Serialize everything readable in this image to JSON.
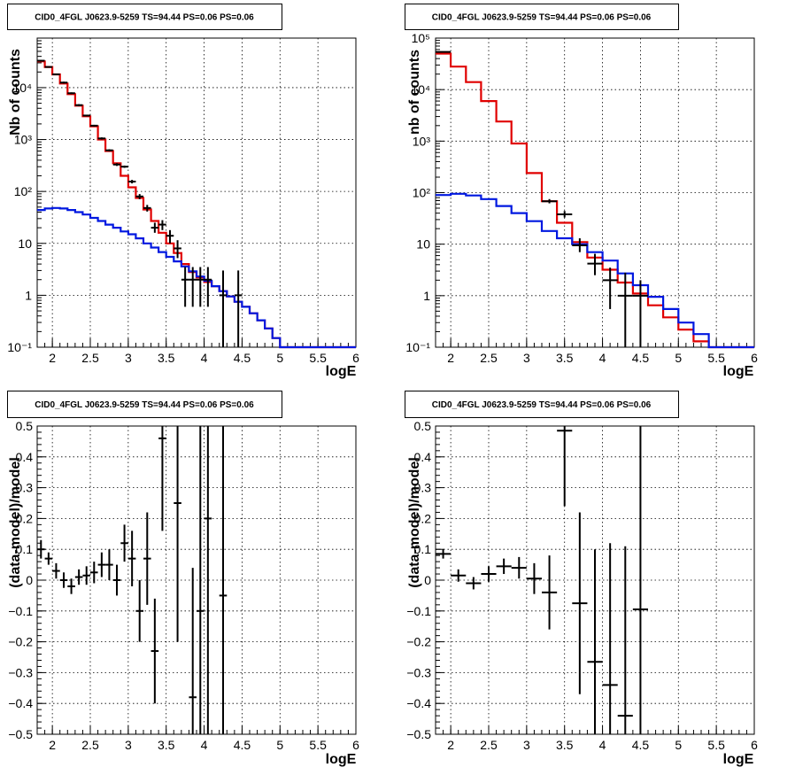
{
  "chart_data": [
    {
      "id": "p1",
      "type": "line",
      "title": "CID0_4FGL J0623.9-5259 TS=94.44 PS=0.06 PS=0.06",
      "xlabel": "logE",
      "ylabel": "Nb of counts",
      "xlim": [
        1.8,
        6.0
      ],
      "ylim": [
        0.1,
        90000
      ],
      "log_y": true,
      "grid": true,
      "x_ticks": [
        "2",
        "2.5",
        "3",
        "3.5",
        "4",
        "4.5",
        "5",
        "5.5",
        "6"
      ],
      "y_ticks": [
        "10⁻¹",
        "1",
        "10",
        "10²",
        "10³",
        "10⁴"
      ],
      "series": [
        {
          "kind": "step",
          "color": "#e00000",
          "xedges": [
            1.8,
            1.9,
            2.0,
            2.1,
            2.2,
            2.3,
            2.4,
            2.5,
            2.6,
            2.7,
            2.8,
            2.9,
            3.0,
            3.1,
            3.2,
            3.3,
            3.4,
            3.5,
            3.6,
            3.7,
            3.8,
            3.9,
            4.0,
            4.1,
            4.2,
            4.3,
            4.4,
            4.5,
            4.6,
            4.7,
            4.8,
            4.9,
            5.0,
            5.1,
            5.2,
            5.3,
            5.4,
            5.5,
            5.6,
            5.7,
            5.8,
            5.9,
            6.0
          ],
          "values": [
            32000,
            25000,
            18000,
            12000,
            7500,
            4500,
            2800,
            1800,
            1000,
            600,
            350,
            200,
            120,
            75,
            45,
            27,
            16,
            10,
            6.5,
            4,
            2.8,
            2.2,
            1.8,
            1.5,
            1.2,
            0.95,
            0.75,
            0.6,
            0.45,
            0.33,
            0.23,
            0.15,
            0.1,
            0.1,
            0.1,
            0.1,
            0.1,
            0.1,
            0.1,
            0.1,
            0.1,
            0.1
          ]
        },
        {
          "kind": "step",
          "color": "#0018e0",
          "xedges": [
            1.8,
            1.9,
            2.0,
            2.1,
            2.2,
            2.3,
            2.4,
            2.5,
            2.6,
            2.7,
            2.8,
            2.9,
            3.0,
            3.1,
            3.2,
            3.3,
            3.4,
            3.5,
            3.6,
            3.7,
            3.8,
            3.9,
            4.0,
            4.1,
            4.2,
            4.3,
            4.4,
            4.5,
            4.6,
            4.7,
            4.8,
            4.9,
            5.0,
            5.1,
            5.2,
            5.3,
            5.4,
            5.5,
            5.6,
            5.7,
            5.8,
            5.9,
            6.0
          ],
          "values": [
            44,
            47,
            48,
            47,
            44,
            40,
            36,
            31,
            27,
            23,
            20,
            17,
            15,
            12.5,
            10,
            8.3,
            6.8,
            5.5,
            4.5,
            3.6,
            2.9,
            2.3,
            1.9,
            1.5,
            1.2,
            0.95,
            0.75,
            0.6,
            0.45,
            0.33,
            0.23,
            0.15,
            0.1,
            0.1,
            0.1,
            0.1,
            0.1,
            0.1,
            0.1,
            0.1,
            0.1,
            0.1
          ]
        },
        {
          "kind": "errorbar",
          "color": "#000000",
          "points": [
            {
              "x": 1.85,
              "y": 33000,
              "xerr": 0.05,
              "lo": 32000,
              "hi": 34000
            },
            {
              "x": 1.95,
              "y": 25000,
              "xerr": 0.05,
              "lo": 24300,
              "hi": 25700
            },
            {
              "x": 2.05,
              "y": 18000,
              "xerr": 0.05,
              "lo": 17500,
              "hi": 18500
            },
            {
              "x": 2.15,
              "y": 12500,
              "xerr": 0.05,
              "lo": 12000,
              "hi": 13000
            },
            {
              "x": 2.25,
              "y": 7800,
              "xerr": 0.05,
              "lo": 7500,
              "hi": 8100
            },
            {
              "x": 2.35,
              "y": 4600,
              "xerr": 0.05,
              "lo": 4400,
              "hi": 4800
            },
            {
              "x": 2.45,
              "y": 2900,
              "xerr": 0.05,
              "lo": 2800,
              "hi": 3000
            },
            {
              "x": 2.55,
              "y": 1850,
              "xerr": 0.05,
              "lo": 1780,
              "hi": 1920
            },
            {
              "x": 2.65,
              "y": 1050,
              "xerr": 0.05,
              "lo": 1000,
              "hi": 1100
            },
            {
              "x": 2.75,
              "y": 620,
              "xerr": 0.05,
              "lo": 590,
              "hi": 650
            },
            {
              "x": 2.85,
              "y": 330,
              "xerr": 0.05,
              "lo": 310,
              "hi": 350
            },
            {
              "x": 2.95,
              "y": 300,
              "xerr": 0.05,
              "lo": 285,
              "hi": 315
            },
            {
              "x": 3.05,
              "y": 155,
              "xerr": 0.05,
              "lo": 143,
              "hi": 167
            },
            {
              "x": 3.15,
              "y": 80,
              "xerr": 0.05,
              "lo": 71,
              "hi": 89
            },
            {
              "x": 3.25,
              "y": 48,
              "xerr": 0.05,
              "lo": 41,
              "hi": 55
            },
            {
              "x": 3.35,
              "y": 20,
              "xerr": 0.05,
              "lo": 16,
              "hi": 25
            },
            {
              "x": 3.45,
              "y": 23,
              "xerr": 0.05,
              "lo": 18,
              "hi": 28
            },
            {
              "x": 3.55,
              "y": 14,
              "xerr": 0.05,
              "lo": 10,
              "hi": 18
            },
            {
              "x": 3.65,
              "y": 8,
              "xerr": 0.05,
              "lo": 5.2,
              "hi": 11.5
            },
            {
              "x": 3.75,
              "y": 2,
              "xerr": 0.05,
              "lo": 0.6,
              "hi": 3.5
            },
            {
              "x": 3.85,
              "y": 2,
              "xerr": 0.05,
              "lo": 0.6,
              "hi": 3.5
            },
            {
              "x": 3.95,
              "y": 2,
              "xerr": 0.05,
              "lo": 0.6,
              "hi": 3.5
            },
            {
              "x": 4.05,
              "y": 2,
              "xerr": 0.05,
              "lo": 0.6,
              "hi": 3.5
            },
            {
              "x": 4.25,
              "y": 1,
              "xerr": 0.05,
              "lo": 0.1,
              "hi": 3.0
            },
            {
              "x": 4.45,
              "y": 1,
              "xerr": 0.05,
              "lo": 0.1,
              "hi": 3.0
            }
          ]
        }
      ]
    },
    {
      "id": "p2",
      "type": "line",
      "title": "CID0_4FGL J0623.9-5259 TS=94.44 PS=0.06 PS=0.06",
      "xlabel": "logE",
      "ylabel": "nb of counts",
      "xlim": [
        1.8,
        6.0
      ],
      "ylim": [
        0.1,
        100000
      ],
      "log_y": true,
      "grid": true,
      "x_ticks": [
        "2",
        "2.5",
        "3",
        "3.5",
        "4",
        "4.5",
        "5",
        "5.5",
        "6"
      ],
      "y_ticks": [
        "10⁻¹",
        "1",
        "10",
        "10²",
        "10³",
        "10⁴",
        "10⁵"
      ],
      "series": [
        {
          "kind": "step",
          "color": "#e00000",
          "xedges": [
            1.8,
            2.0,
            2.2,
            2.4,
            2.6,
            2.8,
            3.0,
            3.2,
            3.4,
            3.6,
            3.8,
            4.0,
            4.2,
            4.4,
            4.6,
            4.8,
            5.0,
            5.2,
            5.4,
            5.6,
            5.8,
            6.0
          ],
          "values": [
            50000,
            28000,
            14000,
            6000,
            2400,
            900,
            240,
            68,
            26,
            11,
            5.5,
            3.2,
            1.8,
            1.1,
            0.65,
            0.38,
            0.22,
            0.13,
            0.1,
            0.1,
            0.1
          ]
        },
        {
          "kind": "step",
          "color": "#0018e0",
          "xedges": [
            1.8,
            2.0,
            2.2,
            2.4,
            2.6,
            2.8,
            3.0,
            3.2,
            3.4,
            3.6,
            3.8,
            4.0,
            4.2,
            4.4,
            4.6,
            4.8,
            5.0,
            5.2,
            5.4,
            5.6,
            5.8,
            6.0
          ],
          "values": [
            90,
            95,
            88,
            75,
            55,
            40,
            28,
            18,
            13,
            10,
            7,
            4.8,
            2.7,
            1.6,
            0.95,
            0.55,
            0.3,
            0.18,
            0.1,
            0.1,
            0.1
          ]
        },
        {
          "kind": "errorbar",
          "color": "#000000",
          "points": [
            {
              "x": 1.9,
              "y": 54000,
              "xerr": 0.1,
              "lo": 53300,
              "hi": 54700
            },
            {
              "x": 3.3,
              "y": 68,
              "xerr": 0.1,
              "lo": 62,
              "hi": 75
            },
            {
              "x": 3.5,
              "y": 38,
              "xerr": 0.1,
              "lo": 33,
              "hi": 44
            },
            {
              "x": 3.7,
              "y": 9.5,
              "xerr": 0.1,
              "lo": 7,
              "hi": 13
            },
            {
              "x": 3.9,
              "y": 4.2,
              "xerr": 0.1,
              "lo": 2.5,
              "hi": 6.5
            },
            {
              "x": 4.1,
              "y": 2,
              "xerr": 0.1,
              "lo": 0.55,
              "hi": 3.5
            },
            {
              "x": 4.3,
              "y": 1,
              "xerr": 0.1,
              "lo": 0.1,
              "hi": 2.8
            },
            {
              "x": 4.5,
              "y": 1,
              "xerr": 0.1,
              "lo": 0.1,
              "hi": 2.0
            }
          ]
        }
      ]
    },
    {
      "id": "p3",
      "type": "scatter",
      "title": "CID0_4FGL J0623.9-5259 TS=94.44 PS=0.06 PS=0.06",
      "xlabel": "logE",
      "ylabel": "(data-model)/model",
      "xlim": [
        1.8,
        6.0
      ],
      "ylim": [
        -0.5,
        0.5
      ],
      "log_y": false,
      "grid": true,
      "x_ticks": [
        "2",
        "2.5",
        "3",
        "3.5",
        "4",
        "4.5",
        "5",
        "5.5",
        "6"
      ],
      "y_ticks": [
        "−0.5",
        "−0.4",
        "−0.3",
        "−0.2",
        "−0.1",
        "0",
        "0.1",
        "0.2",
        "0.3",
        "0.4",
        "0.5"
      ],
      "series": [
        {
          "kind": "errorbar",
          "color": "#000000",
          "points": [
            {
              "x": 1.85,
              "y": 0.1,
              "xerr": 0.05,
              "lo": 0.07,
              "hi": 0.13
            },
            {
              "x": 1.95,
              "y": 0.07,
              "xerr": 0.05,
              "lo": 0.05,
              "hi": 0.09
            },
            {
              "x": 2.05,
              "y": 0.03,
              "xerr": 0.05,
              "lo": 0.005,
              "hi": 0.055
            },
            {
              "x": 2.15,
              "y": 0.0,
              "xerr": 0.05,
              "lo": -0.025,
              "hi": 0.025
            },
            {
              "x": 2.25,
              "y": -0.02,
              "xerr": 0.05,
              "lo": -0.045,
              "hi": 0.005
            },
            {
              "x": 2.35,
              "y": 0.01,
              "xerr": 0.05,
              "lo": -0.015,
              "hi": 0.035
            },
            {
              "x": 2.45,
              "y": 0.015,
              "xerr": 0.05,
              "lo": -0.015,
              "hi": 0.045
            },
            {
              "x": 2.55,
              "y": 0.025,
              "xerr": 0.05,
              "lo": -0.01,
              "hi": 0.06
            },
            {
              "x": 2.65,
              "y": 0.05,
              "xerr": 0.05,
              "lo": 0.01,
              "hi": 0.09
            },
            {
              "x": 2.75,
              "y": 0.05,
              "xerr": 0.05,
              "lo": 0.0,
              "hi": 0.1
            },
            {
              "x": 2.85,
              "y": 0.0,
              "xerr": 0.05,
              "lo": -0.05,
              "hi": 0.05
            },
            {
              "x": 2.95,
              "y": 0.12,
              "xerr": 0.05,
              "lo": 0.06,
              "hi": 0.18
            },
            {
              "x": 3.05,
              "y": 0.07,
              "xerr": 0.05,
              "lo": -0.02,
              "hi": 0.16
            },
            {
              "x": 3.15,
              "y": -0.1,
              "xerr": 0.05,
              "lo": -0.2,
              "hi": 0.0
            },
            {
              "x": 3.25,
              "y": 0.07,
              "xerr": 0.05,
              "lo": -0.08,
              "hi": 0.22
            },
            {
              "x": 3.35,
              "y": -0.23,
              "xerr": 0.05,
              "lo": -0.4,
              "hi": -0.06
            },
            {
              "x": 3.45,
              "y": 0.46,
              "xerr": 0.05,
              "lo": 0.16,
              "hi": 0.76
            },
            {
              "x": 3.65,
              "y": 0.25,
              "xerr": 0.05,
              "lo": -0.2,
              "hi": 0.7
            },
            {
              "x": 3.85,
              "y": -0.38,
              "xerr": 0.05,
              "lo": -0.8,
              "hi": 0.04
            },
            {
              "x": 3.95,
              "y": -0.1,
              "xerr": 0.05,
              "lo": -0.8,
              "hi": 0.6
            },
            {
              "x": 4.05,
              "y": 0.2,
              "xerr": 0.05,
              "lo": -0.5,
              "hi": 0.9
            },
            {
              "x": 4.25,
              "y": -0.05,
              "xerr": 0.05,
              "lo": -0.9,
              "hi": 0.8
            }
          ]
        }
      ]
    },
    {
      "id": "p4",
      "type": "scatter",
      "title": "CID0_4FGL J0623.9-5259 TS=94.44 PS=0.06 PS=0.06",
      "xlabel": "logE",
      "ylabel": "(data-model)/model",
      "xlim": [
        1.8,
        6.0
      ],
      "ylim": [
        -0.5,
        0.5
      ],
      "log_y": false,
      "grid": true,
      "x_ticks": [
        "2",
        "2.5",
        "3",
        "3.5",
        "4",
        "4.5",
        "5",
        "5.5",
        "6"
      ],
      "y_ticks": [
        "−0.5",
        "−0.4",
        "−0.3",
        "−0.2",
        "−0.1",
        "0",
        "0.1",
        "0.2",
        "0.3",
        "0.4",
        "0.5"
      ],
      "series": [
        {
          "kind": "errorbar",
          "color": "#000000",
          "points": [
            {
              "x": 1.9,
              "y": 0.085,
              "xerr": 0.1,
              "lo": 0.07,
              "hi": 0.1
            },
            {
              "x": 2.1,
              "y": 0.015,
              "xerr": 0.1,
              "lo": -0.005,
              "hi": 0.035
            },
            {
              "x": 2.3,
              "y": -0.01,
              "xerr": 0.1,
              "lo": -0.03,
              "hi": 0.01
            },
            {
              "x": 2.5,
              "y": 0.02,
              "xerr": 0.1,
              "lo": -0.005,
              "hi": 0.045
            },
            {
              "x": 2.7,
              "y": 0.045,
              "xerr": 0.1,
              "lo": 0.02,
              "hi": 0.07
            },
            {
              "x": 2.9,
              "y": 0.04,
              "xerr": 0.1,
              "lo": 0.005,
              "hi": 0.075
            },
            {
              "x": 3.1,
              "y": 0.005,
              "xerr": 0.1,
              "lo": -0.045,
              "hi": 0.055
            },
            {
              "x": 3.3,
              "y": -0.04,
              "xerr": 0.1,
              "lo": -0.16,
              "hi": 0.08
            },
            {
              "x": 3.5,
              "y": 0.485,
              "xerr": 0.1,
              "lo": 0.24,
              "hi": 0.73
            },
            {
              "x": 3.7,
              "y": -0.075,
              "xerr": 0.1,
              "lo": -0.37,
              "hi": 0.22
            },
            {
              "x": 3.9,
              "y": -0.265,
              "xerr": 0.1,
              "lo": -0.63,
              "hi": 0.1
            },
            {
              "x": 4.1,
              "y": -0.34,
              "xerr": 0.1,
              "lo": -0.8,
              "hi": 0.12
            },
            {
              "x": 4.3,
              "y": -0.44,
              "xerr": 0.1,
              "lo": -0.99,
              "hi": 0.11
            },
            {
              "x": 4.5,
              "y": -0.095,
              "xerr": 0.1,
              "lo": -0.9,
              "hi": 0.7
            }
          ]
        }
      ]
    }
  ]
}
